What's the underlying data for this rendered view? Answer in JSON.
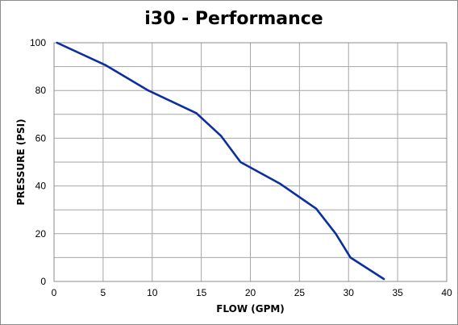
{
  "chart_data": {
    "type": "line",
    "title": "i30 - Performance",
    "xlabel": "FLOW (GPM)",
    "ylabel": "PRESSURE (PSI)",
    "xlim": [
      0,
      40
    ],
    "ylim": [
      0,
      100
    ],
    "xticks": [
      0,
      5,
      10,
      15,
      20,
      25,
      30,
      35,
      40
    ],
    "yticks": [
      0,
      20,
      40,
      60,
      80,
      100
    ],
    "x_minor_step": 5,
    "y_minor_step": 10,
    "grid": true,
    "legend": "none",
    "line_color": "#0b2fa0",
    "series": [
      {
        "name": "",
        "x": [
          0.3,
          5.3,
          9.6,
          14.5,
          17.0,
          19.0,
          23.0,
          26.7,
          28.7,
          30.2,
          33.6
        ],
        "y": [
          100,
          90.5,
          80,
          70.5,
          61,
          50,
          41,
          30.5,
          20,
          10,
          1
        ]
      }
    ]
  }
}
